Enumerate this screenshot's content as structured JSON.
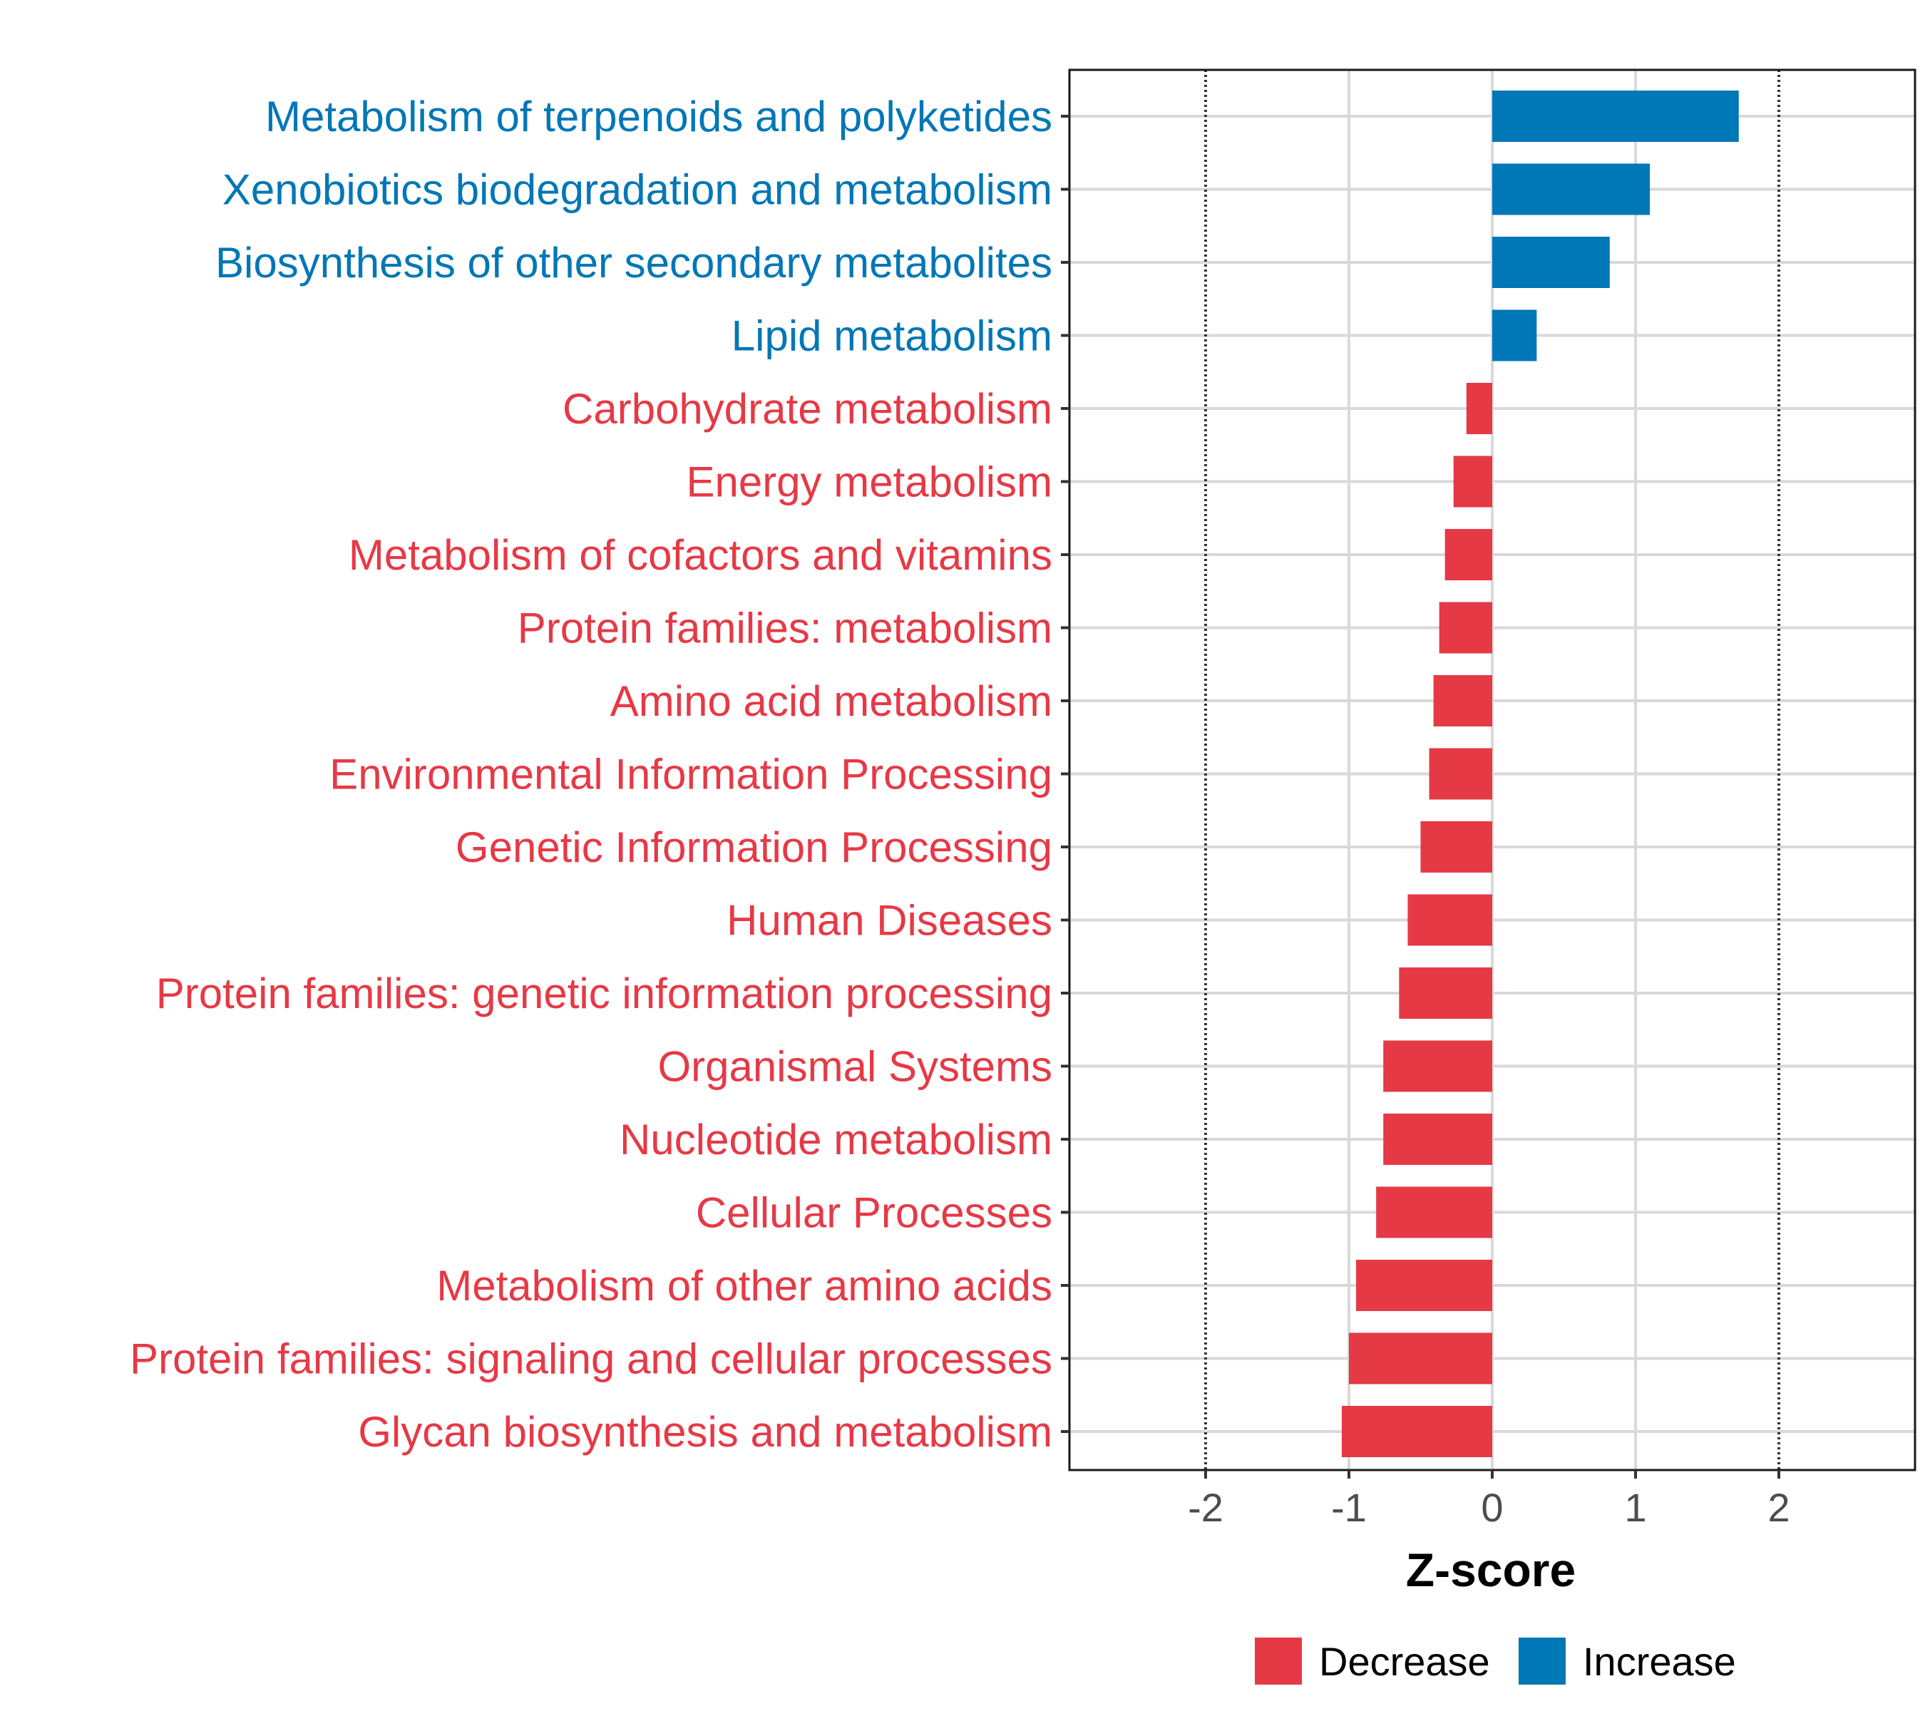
{
  "colors": {
    "decrease": "#e63946",
    "increase": "#0077b6"
  },
  "chart_data": {
    "type": "bar",
    "orientation": "horizontal",
    "xlabel": "Z-score",
    "ylabel": "",
    "xlim": [
      -2.95,
      2.95
    ],
    "xticks": [
      -2,
      -1,
      0,
      1,
      2
    ],
    "xtick_labels": [
      "-2",
      "-1",
      "0",
      "1",
      "2"
    ],
    "reference_lines": [
      -2,
      2
    ],
    "grid": true,
    "legend_position": "bottom",
    "legend": [
      {
        "label": "Decrease",
        "color_key": "decrease"
      },
      {
        "label": "Increase",
        "color_key": "increase"
      }
    ],
    "categories": [
      "Metabolism of terpenoids and polyketides",
      "Xenobiotics biodegradation and metabolism",
      "Biosynthesis of other secondary metabolites",
      "Lipid metabolism",
      "Carbohydrate metabolism",
      "Energy metabolism",
      "Metabolism of cofactors and vitamins",
      "Protein families: metabolism",
      "Amino acid metabolism",
      "Environmental Information Processing",
      "Genetic Information Processing",
      "Human Diseases",
      "Protein families: genetic information processing",
      "Organismal Systems",
      "Nucleotide metabolism",
      "Cellular Processes",
      "Metabolism of other amino acids",
      "Protein families: signaling and cellular processes",
      "Glycan biosynthesis and metabolism"
    ],
    "values": [
      1.72,
      1.1,
      0.82,
      0.31,
      -0.18,
      -0.27,
      -0.33,
      -0.37,
      -0.41,
      -0.44,
      -0.5,
      -0.59,
      -0.65,
      -0.76,
      -0.76,
      -0.81,
      -0.95,
      -1.0,
      -1.05
    ]
  }
}
